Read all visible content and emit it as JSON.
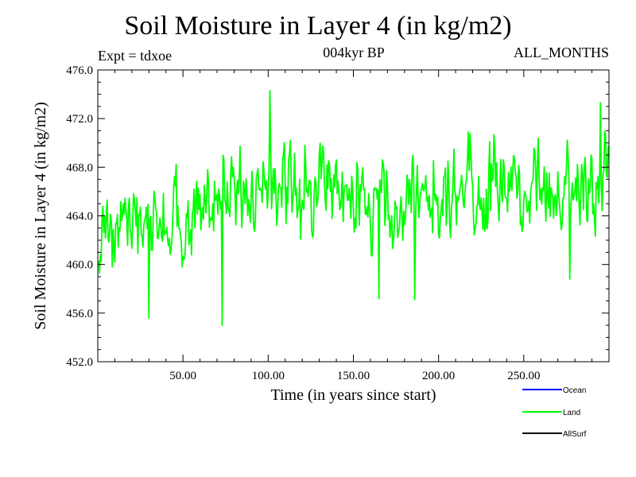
{
  "header": {
    "title": "Soil Moisture in Layer 4 (in kg/m2)",
    "experiment": "Expt = tdxoe",
    "subtitle": "004kyr BP",
    "months": "ALL_MONTHS"
  },
  "chart_data": {
    "type": "line",
    "title": "Soil Moisture in Layer 4 (in kg/m2)",
    "xlabel": "Time (in years since start)",
    "ylabel": "Soil Moisture in Layer 4 (in kg/m2)",
    "xlim": [
      0,
      300
    ],
    "ylim": [
      452,
      476
    ],
    "xticks": [
      50,
      100,
      150,
      200,
      250
    ],
    "xtick_labels": [
      "50.00",
      "100.00",
      "150.00",
      "200.00",
      "250.00"
    ],
    "yticks": [
      452,
      456,
      460,
      464,
      468,
      472,
      476
    ],
    "ytick_labels": [
      "452.0",
      "456.0",
      "460.0",
      "464.0",
      "468.0",
      "472.0",
      "476.0"
    ],
    "grid": false,
    "legend_position": "bottom-right",
    "legend": [
      {
        "name": "Ocean",
        "color": "#0000ff"
      },
      {
        "name": "Land",
        "color": "#00ff00"
      },
      {
        "name": "AllSurf",
        "color": "#000000"
      }
    ],
    "series": [
      {
        "name": "Land",
        "color": "#00ff00",
        "x_start": 0.5,
        "x_step": 0.5,
        "baseline": {
          "x": [
            0,
            10,
            20,
            30,
            40,
            50,
            60,
            70,
            80,
            90,
            100,
            110,
            120,
            130,
            140,
            150,
            160,
            170,
            180,
            190,
            200,
            210,
            220,
            230,
            240,
            250,
            260,
            270,
            280,
            290,
            300
          ],
          "y": [
            463.2,
            463.5,
            463.0,
            462.5,
            462.8,
            463.8,
            465.0,
            465.5,
            466.0,
            466.3,
            466.5,
            466.2,
            466.0,
            465.8,
            465.6,
            465.2,
            465.0,
            465.8,
            465.5,
            465.4,
            465.3,
            465.5,
            466.0,
            466.2,
            466.3,
            465.8,
            465.5,
            466.0,
            466.3,
            466.8,
            467.0
          ]
        },
        "noise_amplitude": 2.2,
        "extremes": [
          {
            "x": 30,
            "y": 455.6
          },
          {
            "x": 73,
            "y": 455.0
          },
          {
            "x": 101,
            "y": 474.3
          },
          {
            "x": 165,
            "y": 457.2
          },
          {
            "x": 186,
            "y": 457.1
          },
          {
            "x": 277,
            "y": 458.8
          },
          {
            "x": 295,
            "y": 473.3
          }
        ]
      }
    ]
  }
}
